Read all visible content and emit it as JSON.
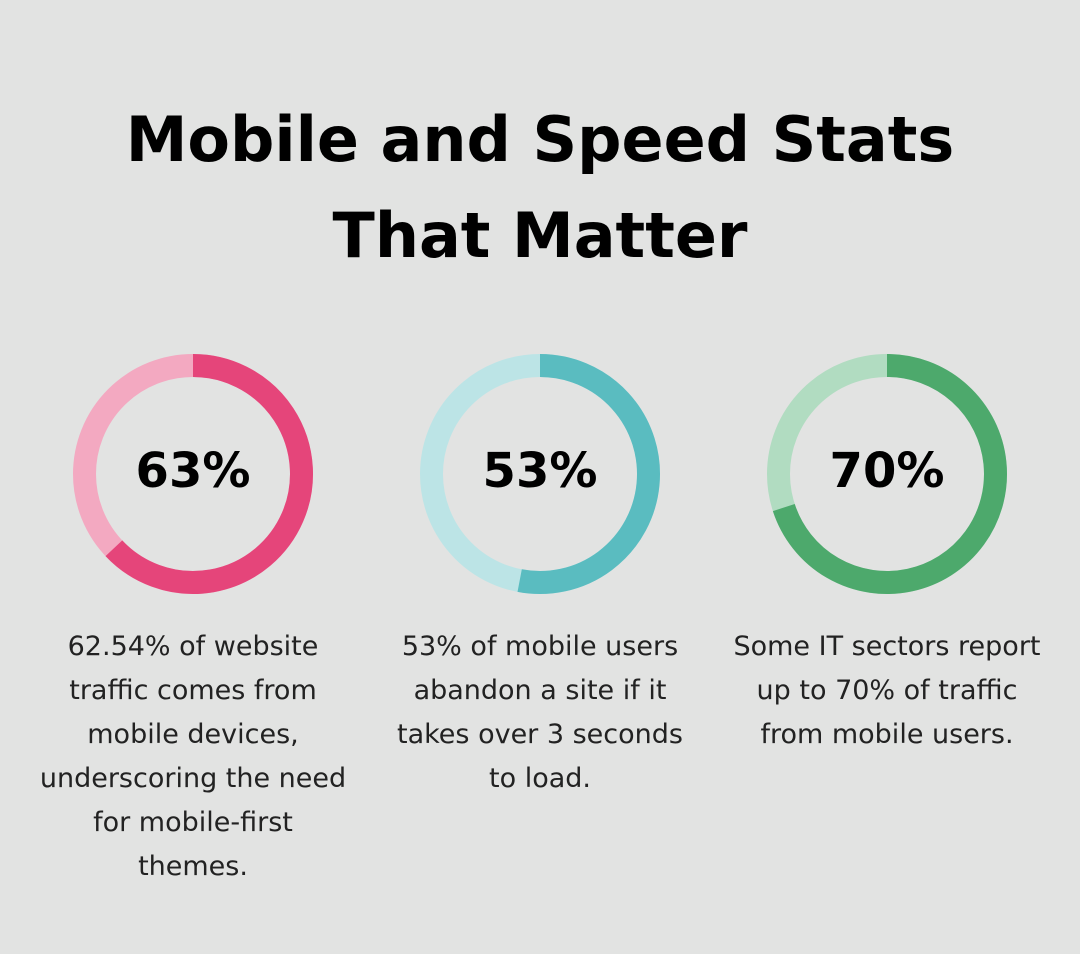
{
  "title": "Mobile and Speed Stats That Matter",
  "chart_data": [
    {
      "type": "donut",
      "values": [
        63
      ],
      "value_labels": [
        "63%"
      ],
      "color": "#e5457a",
      "track_color": "#f3a9c1",
      "caption": "62.54% of website traffic comes from mobile devices, underscoring the need for mobile-first themes."
    },
    {
      "type": "donut",
      "values": [
        53
      ],
      "value_labels": [
        "53%"
      ],
      "color": "#5abcc0",
      "track_color": "#bce4e6",
      "caption": "53% of mobile users abandon a site if it takes over 3 seconds to load."
    },
    {
      "type": "donut",
      "values": [
        70
      ],
      "value_labels": [
        "70%"
      ],
      "color": "#4da96c",
      "track_color": "#b1dcc1",
      "caption": "Some IT sectors report up to 70% of traffic from mobile users."
    }
  ]
}
